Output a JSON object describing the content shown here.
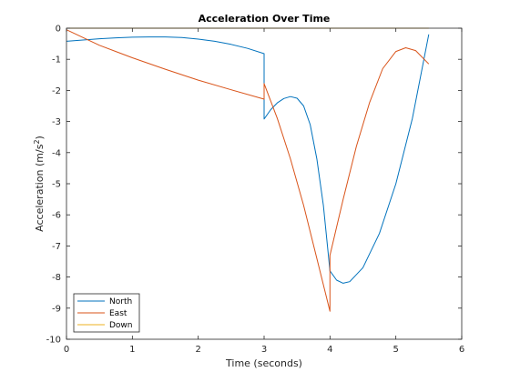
{
  "chart_data": {
    "type": "line",
    "title": "Acceleration Over Time",
    "xlabel": "Time (seconds)",
    "ylabel_main": "Acceleration (m/s",
    "ylabel_sup": "2",
    "ylabel_end": ")",
    "xlim": [
      0,
      6
    ],
    "ylim": [
      -10,
      0
    ],
    "x_ticks": [
      0,
      1,
      2,
      3,
      4,
      5,
      6
    ],
    "y_ticks": [
      0,
      -1,
      -2,
      -3,
      -4,
      -5,
      -6,
      -7,
      -8,
      -9,
      -10
    ],
    "grid": false,
    "legend_position": "bottom-left",
    "series": [
      {
        "name": "North",
        "color": "#0072BD",
        "points": [
          [
            0,
            -0.42
          ],
          [
            0.25,
            -0.38
          ],
          [
            0.5,
            -0.34
          ],
          [
            0.75,
            -0.31
          ],
          [
            1.0,
            -0.29
          ],
          [
            1.25,
            -0.28
          ],
          [
            1.5,
            -0.28
          ],
          [
            1.75,
            -0.3
          ],
          [
            2.0,
            -0.35
          ],
          [
            2.25,
            -0.42
          ],
          [
            2.5,
            -0.52
          ],
          [
            2.75,
            -0.65
          ],
          [
            3.0,
            -0.82
          ],
          [
            3.0,
            -2.92
          ],
          [
            3.1,
            -2.62
          ],
          [
            3.2,
            -2.4
          ],
          [
            3.3,
            -2.26
          ],
          [
            3.4,
            -2.2
          ],
          [
            3.5,
            -2.25
          ],
          [
            3.6,
            -2.5
          ],
          [
            3.7,
            -3.1
          ],
          [
            3.8,
            -4.2
          ],
          [
            3.9,
            -5.7
          ],
          [
            4.0,
            -7.8
          ],
          [
            4.1,
            -8.1
          ],
          [
            4.2,
            -8.2
          ],
          [
            4.3,
            -8.15
          ],
          [
            4.5,
            -7.7
          ],
          [
            4.75,
            -6.6
          ],
          [
            5.0,
            -5.0
          ],
          [
            5.25,
            -2.9
          ],
          [
            5.5,
            -0.2
          ]
        ]
      },
      {
        "name": "East",
        "color": "#D95319",
        "points": [
          [
            0,
            -0.05
          ],
          [
            0.5,
            -0.55
          ],
          [
            1.0,
            -0.95
          ],
          [
            1.5,
            -1.32
          ],
          [
            2.0,
            -1.67
          ],
          [
            2.5,
            -1.98
          ],
          [
            3.0,
            -2.28
          ],
          [
            3.0,
            -1.78
          ],
          [
            3.2,
            -2.9
          ],
          [
            3.4,
            -4.2
          ],
          [
            3.6,
            -5.7
          ],
          [
            3.8,
            -7.4
          ],
          [
            4.0,
            -9.1
          ],
          [
            4.0,
            -7.3
          ],
          [
            4.2,
            -5.5
          ],
          [
            4.4,
            -3.8
          ],
          [
            4.6,
            -2.4
          ],
          [
            4.8,
            -1.3
          ],
          [
            5.0,
            -0.75
          ],
          [
            5.15,
            -0.63
          ],
          [
            5.3,
            -0.72
          ],
          [
            5.5,
            -1.15
          ]
        ]
      },
      {
        "name": "Down",
        "color": "#EDB120",
        "points": [
          [
            0,
            0
          ],
          [
            5.5,
            0
          ]
        ]
      }
    ]
  }
}
